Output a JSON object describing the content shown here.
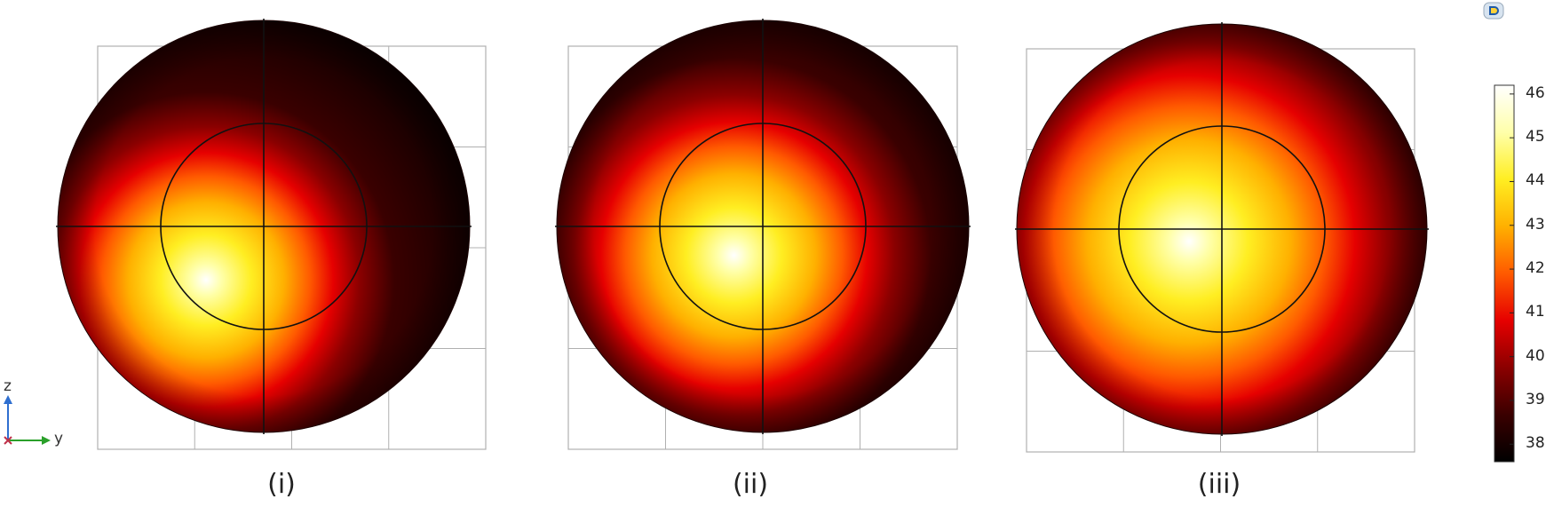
{
  "chart_data": {
    "type": "heatmap",
    "panels": [
      {
        "label": "(i)",
        "hot_spot_offset_y": -0.14,
        "hot_spot_offset_z": -0.13,
        "hot_radius": 0.42
      },
      {
        "label": "(ii)",
        "hot_spot_offset_y": -0.07,
        "hot_spot_offset_z": -0.07,
        "hot_radius": 0.44
      },
      {
        "label": "(iii)",
        "hot_spot_offset_y": -0.08,
        "hot_spot_offset_z": -0.03,
        "hot_radius": 0.55
      }
    ],
    "colorbar": {
      "min": 37.6,
      "max": 46.2,
      "ticks": [
        46,
        45,
        44,
        43,
        42,
        41,
        40,
        39,
        38
      ],
      "colormap": "thermal",
      "stops": [
        "#000000",
        "#3a0000",
        "#8b0000",
        "#e60000",
        "#ff5a00",
        "#ffb000",
        "#ffee22",
        "#ffffaa",
        "#ffffff"
      ]
    },
    "axes": {
      "vertical": "z",
      "horizontal": "y"
    },
    "xlabel": "",
    "ylabel": "",
    "title": ""
  },
  "axis_triad": {
    "z_label": "z",
    "y_label": "y"
  },
  "icons": {
    "toolbar": "colorbar-settings-icon"
  },
  "colors": {
    "grid": "#b0b0b0",
    "outline": "#111111",
    "z_axis": "#2f6fd0",
    "y_axis": "#2aa02a"
  }
}
